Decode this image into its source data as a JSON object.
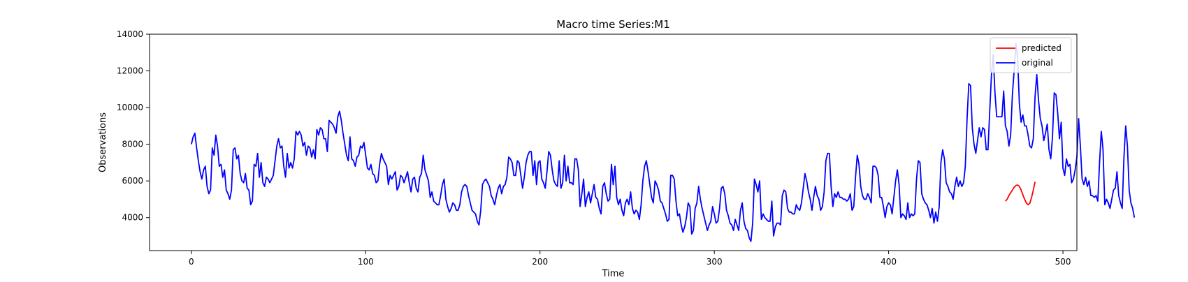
{
  "chart_data": {
    "type": "line",
    "title": "Macro time Series:M1",
    "xlabel": "Time",
    "ylabel": "Observations",
    "xlim": [
      -24,
      508
    ],
    "ylim": [
      2200,
      14000
    ],
    "x_ticks": [
      0,
      100,
      200,
      300,
      400,
      500
    ],
    "y_ticks": [
      4000,
      6000,
      8000,
      10000,
      12000,
      14000
    ],
    "grid": false,
    "legend": {
      "placement": "top-right",
      "entries": [
        "predicted",
        "original"
      ]
    },
    "series": [
      {
        "name": "original",
        "color": "#0000ff",
        "x_start": 0,
        "values": [
          8000,
          8400,
          8600,
          7800,
          7100,
          6500,
          6100,
          6600,
          6800,
          5700,
          5300,
          5500,
          7800,
          7400,
          8500,
          7900,
          6800,
          6900,
          6200,
          6600,
          5500,
          5300,
          5000,
          5500,
          7700,
          7800,
          7200,
          7400,
          6400,
          6000,
          5900,
          6400,
          5600,
          5500,
          4700,
          4900,
          6900,
          6800,
          7500,
          6200,
          7000,
          5900,
          5700,
          6200,
          6100,
          5900,
          6100,
          6300,
          7100,
          7900,
          8300,
          7800,
          7900,
          6800,
          6200,
          7500,
          6700,
          7000,
          6700,
          7200,
          8700,
          8500,
          8700,
          8500,
          7900,
          8100,
          7400,
          7900,
          7800,
          7300,
          7700,
          7200,
          8800,
          8500,
          8900,
          8800,
          8300,
          8300,
          7600,
          9300,
          9200,
          9100,
          8900,
          8600,
          9500,
          9800,
          9300,
          8600,
          8000,
          7400,
          7100,
          8400,
          7200,
          7100,
          6800,
          7300,
          7400,
          7900,
          7800,
          8100,
          7400,
          6700,
          6600,
          6900,
          6400,
          6300,
          5900,
          6000,
          6900,
          7500,
          7200,
          7000,
          6800,
          5800,
          6300,
          6100,
          6300,
          6500,
          5500,
          5700,
          6300,
          6200,
          5900,
          6200,
          6500,
          5900,
          5400,
          6100,
          6200,
          5600,
          5400,
          6200,
          6400,
          7400,
          6600,
          6300,
          6000,
          5100,
          5400,
          4900,
          4800,
          4700,
          4700,
          5200,
          5800,
          6100,
          5000,
          4600,
          4300,
          4500,
          4800,
          4700,
          4400,
          4400,
          4700,
          5400,
          5700,
          5800,
          5700,
          5200,
          4800,
          4400,
          4300,
          4200,
          3800,
          3600,
          4400,
          5800,
          6000,
          6100,
          5900,
          5700,
          5200,
          5000,
          4700,
          5200,
          5600,
          5800,
          5300,
          5700,
          5800,
          6200,
          7300,
          7200,
          7000,
          6300,
          6300,
          7100,
          7000,
          6300,
          5600,
          6200,
          7000,
          7400,
          7600,
          7600,
          6300,
          7100,
          5800,
          7000,
          7100,
          6100,
          5900,
          5600,
          6500,
          7600,
          7400,
          6600,
          6000,
          5800,
          5700,
          7100,
          5600,
          5900,
          7400,
          6000,
          6800,
          5900,
          5900,
          5800,
          7200,
          7200,
          6600,
          4600,
          5300,
          6100,
          4600,
          5100,
          5400,
          4800,
          5300,
          5800,
          5100,
          5000,
          4500,
          4200,
          5700,
          5900,
          5300,
          4900,
          5000,
          6900,
          5800,
          6800,
          5100,
          4700,
          5000,
          4400,
          4100,
          4800,
          5000,
          4700,
          5400,
          4500,
          4200,
          4400,
          4300,
          3900,
          4700,
          6000,
          6800,
          7100,
          6500,
          5800,
          5100,
          4800,
          6000,
          5800,
          5500,
          4900,
          4800,
          4500,
          4200,
          3800,
          3900,
          6300,
          6300,
          6100,
          4900,
          4100,
          4200,
          3600,
          3200,
          3500,
          4000,
          4800,
          4600,
          3100,
          3300,
          4500,
          4800,
          5700,
          5000,
          4500,
          4100,
          3700,
          3300,
          3600,
          3800,
          4600,
          4200,
          3700,
          3800,
          4500,
          5600,
          5700,
          5300,
          4400,
          4100,
          3700,
          3600,
          3300,
          3900,
          3600,
          3300,
          4400,
          4800,
          3800,
          3400,
          3300,
          2900,
          2700,
          3700,
          6100,
          5800,
          5400,
          6000,
          3900,
          4200,
          4000,
          3900,
          3800,
          3800,
          4900,
          3000,
          3500,
          3700,
          3700,
          3600,
          5200,
          5500,
          5400,
          4500,
          4300,
          4300,
          4200,
          4200,
          4700,
          4500,
          4400,
          4800,
          5600,
          6400,
          6000,
          5400,
          5000,
          4400,
          5100,
          5700,
          5200,
          5000,
          4400,
          4600,
          5400,
          7100,
          7500,
          7500,
          5700,
          4600,
          5300,
          5100,
          5400,
          5100,
          5100,
          5000,
          5000,
          4900,
          5000,
          5300,
          4400,
          4600,
          6200,
          7400,
          6900,
          5700,
          5200,
          5000,
          5000,
          5300,
          5100,
          4800,
          6800,
          6800,
          6700,
          6300,
          5100,
          5100,
          4600,
          4000,
          4600,
          4800,
          4700,
          4200,
          5100,
          6000,
          6600,
          5800,
          4000,
          4200,
          4100,
          3900,
          4800,
          4000,
          4200,
          4100,
          4200,
          6100,
          7100,
          7000,
          5300,
          5000,
          4800,
          4700,
          4400,
          4000,
          4500,
          3700,
          4300,
          3800,
          4600,
          7000,
          7700,
          7200,
          5900,
          5700,
          5400,
          5300,
          5000,
          5700,
          6200,
          5700,
          6000,
          5700,
          5900,
          6800,
          9400,
          11300,
          11200,
          8900,
          8000,
          7500,
          8200,
          8900,
          8400,
          8900,
          8800,
          7700,
          7700,
          9800,
          11800,
          12900,
          10800,
          9500,
          9500,
          9500,
          9500,
          10900,
          9000,
          8700,
          7900,
          8500,
          10700,
          12000,
          13500,
          12700,
          10200,
          9200,
          9600,
          9000,
          9000,
          8500,
          7900,
          7800,
          8300,
          10600,
          11800,
          10400,
          9400,
          9000,
          8200,
          8600,
          9100,
          7700,
          7200,
          8400,
          10800,
          10700,
          9700,
          8300,
          9200,
          6700,
          6300,
          7200,
          6800,
          6900,
          5900,
          6100,
          6600,
          7300,
          9400,
          7900,
          6100,
          5800,
          6200,
          5700,
          6000,
          5200,
          5200,
          5100,
          5200,
          4900,
          7000,
          8700,
          7700,
          4700,
          5000,
          4800,
          4500,
          5000,
          5500,
          5600,
          6500,
          5200,
          4800,
          4500,
          7300,
          9000,
          7900,
          5500,
          4800,
          4500,
          4000
        ]
      },
      {
        "name": "predicted",
        "color": "#ff0000",
        "x_start": 467,
        "values": [
          4900,
          5000,
          5200,
          5350,
          5500,
          5650,
          5750,
          5780,
          5700,
          5500,
          5250,
          5000,
          4800,
          4700,
          4780,
          5100,
          5500,
          5950
        ]
      }
    ]
  }
}
